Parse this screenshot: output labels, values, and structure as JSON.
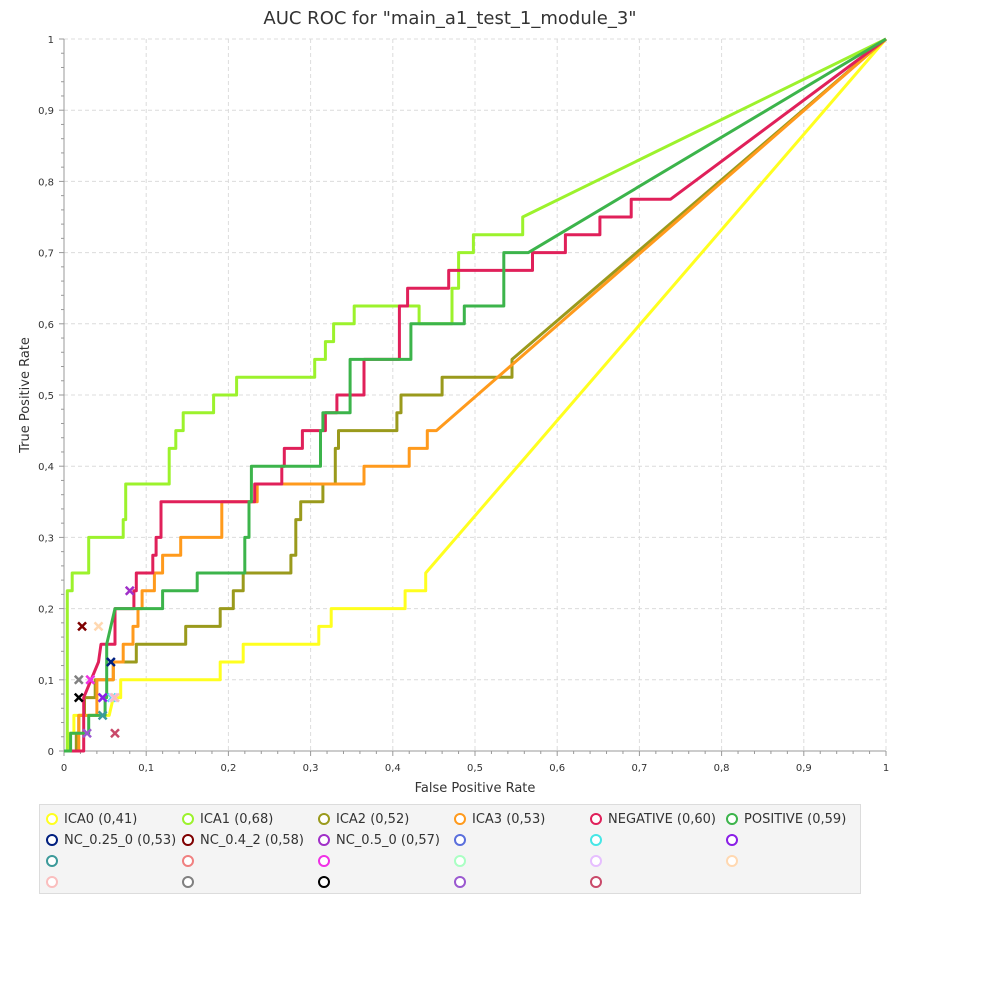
{
  "chart_data": {
    "type": "line",
    "title": "AUC ROC for \"main_a1_test_1_module_3\"",
    "xlabel": "False Positive Rate",
    "ylabel": "True Positive Rate",
    "xlim": [
      0,
      1
    ],
    "ylim": [
      0,
      1
    ],
    "grid": true,
    "x_ticks": [
      "0",
      "0,1",
      "0,2",
      "0,3",
      "0,4",
      "0,5",
      "0,6",
      "0,7",
      "0,8",
      "0,9",
      "1"
    ],
    "y_ticks": [
      "0",
      "0,1",
      "0,2",
      "0,3",
      "0,4",
      "0,5",
      "0,6",
      "0,7",
      "0,8",
      "0,9",
      "1"
    ],
    "series": [
      {
        "name": "ICA0 (0,41)",
        "color": "#ffff1f",
        "points": [
          [
            0,
            0
          ],
          [
            0.006,
            0
          ],
          [
            0.006,
            0.025
          ],
          [
            0.012,
            0.025
          ],
          [
            0.012,
            0.05
          ],
          [
            0.055,
            0.05
          ],
          [
            0.06,
            0.075
          ],
          [
            0.069,
            0.075
          ],
          [
            0.069,
            0.1
          ],
          [
            0.19,
            0.1
          ],
          [
            0.19,
            0.125
          ],
          [
            0.218,
            0.125
          ],
          [
            0.218,
            0.15
          ],
          [
            0.31,
            0.15
          ],
          [
            0.31,
            0.175
          ],
          [
            0.325,
            0.175
          ],
          [
            0.325,
            0.2
          ],
          [
            0.415,
            0.2
          ],
          [
            0.415,
            0.225
          ],
          [
            0.44,
            0.225
          ],
          [
            0.44,
            0.25
          ],
          [
            1,
            1
          ]
        ]
      },
      {
        "name": "ICA1 (0,68)",
        "color": "#9cf22c",
        "points": [
          [
            0,
            0
          ],
          [
            0.004,
            0
          ],
          [
            0.004,
            0.1
          ],
          [
            0.004,
            0.225
          ],
          [
            0.01,
            0.225
          ],
          [
            0.01,
            0.25
          ],
          [
            0.03,
            0.25
          ],
          [
            0.03,
            0.3
          ],
          [
            0.072,
            0.3
          ],
          [
            0.072,
            0.325
          ],
          [
            0.075,
            0.325
          ],
          [
            0.075,
            0.375
          ],
          [
            0.128,
            0.375
          ],
          [
            0.128,
            0.425
          ],
          [
            0.136,
            0.425
          ],
          [
            0.136,
            0.45
          ],
          [
            0.145,
            0.45
          ],
          [
            0.145,
            0.475
          ],
          [
            0.182,
            0.475
          ],
          [
            0.182,
            0.5
          ],
          [
            0.21,
            0.5
          ],
          [
            0.21,
            0.525
          ],
          [
            0.305,
            0.525
          ],
          [
            0.305,
            0.55
          ],
          [
            0.318,
            0.55
          ],
          [
            0.318,
            0.575
          ],
          [
            0.328,
            0.575
          ],
          [
            0.328,
            0.6
          ],
          [
            0.353,
            0.6
          ],
          [
            0.353,
            0.625
          ],
          [
            0.432,
            0.625
          ],
          [
            0.432,
            0.6
          ],
          [
            0.472,
            0.6
          ],
          [
            0.472,
            0.65
          ],
          [
            0.48,
            0.65
          ],
          [
            0.48,
            0.7
          ],
          [
            0.498,
            0.7
          ],
          [
            0.498,
            0.725
          ],
          [
            0.558,
            0.725
          ],
          [
            0.558,
            0.75
          ],
          [
            1,
            1
          ]
        ]
      },
      {
        "name": "ICA2 (0,52)",
        "color": "#9a9a1c",
        "points": [
          [
            0,
            0
          ],
          [
            0.015,
            0
          ],
          [
            0.015,
            0.025
          ],
          [
            0.018,
            0.025
          ],
          [
            0.018,
            0.05
          ],
          [
            0.025,
            0.05
          ],
          [
            0.025,
            0.075
          ],
          [
            0.038,
            0.075
          ],
          [
            0.038,
            0.1
          ],
          [
            0.06,
            0.1
          ],
          [
            0.06,
            0.125
          ],
          [
            0.088,
            0.125
          ],
          [
            0.088,
            0.15
          ],
          [
            0.148,
            0.15
          ],
          [
            0.148,
            0.175
          ],
          [
            0.19,
            0.175
          ],
          [
            0.19,
            0.2
          ],
          [
            0.206,
            0.2
          ],
          [
            0.206,
            0.225
          ],
          [
            0.218,
            0.225
          ],
          [
            0.218,
            0.25
          ],
          [
            0.276,
            0.25
          ],
          [
            0.276,
            0.275
          ],
          [
            0.282,
            0.275
          ],
          [
            0.282,
            0.325
          ],
          [
            0.288,
            0.325
          ],
          [
            0.288,
            0.35
          ],
          [
            0.315,
            0.35
          ],
          [
            0.315,
            0.375
          ],
          [
            0.33,
            0.375
          ],
          [
            0.33,
            0.425
          ],
          [
            0.334,
            0.425
          ],
          [
            0.334,
            0.45
          ],
          [
            0.405,
            0.45
          ],
          [
            0.405,
            0.475
          ],
          [
            0.41,
            0.475
          ],
          [
            0.41,
            0.5
          ],
          [
            0.46,
            0.5
          ],
          [
            0.46,
            0.525
          ],
          [
            0.545,
            0.525
          ],
          [
            0.545,
            0.55
          ],
          [
            1,
            1
          ]
        ]
      },
      {
        "name": "ICA3 (0,53)",
        "color": "#ff9a1c",
        "points": [
          [
            0,
            0
          ],
          [
            0.018,
            0
          ],
          [
            0.018,
            0.05
          ],
          [
            0.04,
            0.05
          ],
          [
            0.04,
            0.1
          ],
          [
            0.06,
            0.1
          ],
          [
            0.06,
            0.125
          ],
          [
            0.072,
            0.125
          ],
          [
            0.072,
            0.15
          ],
          [
            0.084,
            0.15
          ],
          [
            0.084,
            0.175
          ],
          [
            0.09,
            0.175
          ],
          [
            0.09,
            0.2
          ],
          [
            0.095,
            0.2
          ],
          [
            0.095,
            0.225
          ],
          [
            0.11,
            0.225
          ],
          [
            0.11,
            0.25
          ],
          [
            0.12,
            0.25
          ],
          [
            0.12,
            0.275
          ],
          [
            0.142,
            0.275
          ],
          [
            0.142,
            0.3
          ],
          [
            0.192,
            0.3
          ],
          [
            0.192,
            0.35
          ],
          [
            0.235,
            0.35
          ],
          [
            0.235,
            0.375
          ],
          [
            0.365,
            0.375
          ],
          [
            0.365,
            0.4
          ],
          [
            0.42,
            0.4
          ],
          [
            0.42,
            0.425
          ],
          [
            0.442,
            0.425
          ],
          [
            0.442,
            0.45
          ],
          [
            0.453,
            0.45
          ],
          [
            1,
            1
          ]
        ]
      },
      {
        "name": "NEGATIVE (0,60)",
        "color": "#e0205a",
        "points": [
          [
            0,
            0
          ],
          [
            0.024,
            0
          ],
          [
            0.024,
            0.075
          ],
          [
            0.042,
            0.125
          ],
          [
            0.045,
            0.15
          ],
          [
            0.062,
            0.15
          ],
          [
            0.062,
            0.2
          ],
          [
            0.085,
            0.2
          ],
          [
            0.085,
            0.225
          ],
          [
            0.088,
            0.225
          ],
          [
            0.088,
            0.25
          ],
          [
            0.108,
            0.25
          ],
          [
            0.108,
            0.275
          ],
          [
            0.112,
            0.275
          ],
          [
            0.112,
            0.3
          ],
          [
            0.118,
            0.3
          ],
          [
            0.118,
            0.35
          ],
          [
            0.232,
            0.35
          ],
          [
            0.232,
            0.375
          ],
          [
            0.265,
            0.375
          ],
          [
            0.265,
            0.4
          ],
          [
            0.268,
            0.4
          ],
          [
            0.268,
            0.425
          ],
          [
            0.29,
            0.425
          ],
          [
            0.29,
            0.45
          ],
          [
            0.318,
            0.45
          ],
          [
            0.318,
            0.475
          ],
          [
            0.332,
            0.475
          ],
          [
            0.332,
            0.5
          ],
          [
            0.365,
            0.5
          ],
          [
            0.365,
            0.55
          ],
          [
            0.408,
            0.55
          ],
          [
            0.408,
            0.625
          ],
          [
            0.418,
            0.625
          ],
          [
            0.418,
            0.65
          ],
          [
            0.468,
            0.65
          ],
          [
            0.468,
            0.675
          ],
          [
            0.57,
            0.675
          ],
          [
            0.57,
            0.7
          ],
          [
            0.61,
            0.7
          ],
          [
            0.61,
            0.725
          ],
          [
            0.652,
            0.725
          ],
          [
            0.652,
            0.75
          ],
          [
            0.69,
            0.75
          ],
          [
            0.69,
            0.775
          ],
          [
            0.738,
            0.775
          ],
          [
            1,
            1
          ]
        ]
      },
      {
        "name": "POSITIVE (0,59)",
        "color": "#3cb44b",
        "points": [
          [
            0,
            0
          ],
          [
            0.008,
            0
          ],
          [
            0.008,
            0.025
          ],
          [
            0.03,
            0.025
          ],
          [
            0.03,
            0.05
          ],
          [
            0.05,
            0.05
          ],
          [
            0.05,
            0.075
          ],
          [
            0.052,
            0.075
          ],
          [
            0.052,
            0.15
          ],
          [
            0.062,
            0.2
          ],
          [
            0.12,
            0.2
          ],
          [
            0.12,
            0.225
          ],
          [
            0.162,
            0.225
          ],
          [
            0.162,
            0.25
          ],
          [
            0.22,
            0.25
          ],
          [
            0.22,
            0.3
          ],
          [
            0.225,
            0.3
          ],
          [
            0.225,
            0.35
          ],
          [
            0.228,
            0.35
          ],
          [
            0.228,
            0.4
          ],
          [
            0.312,
            0.4
          ],
          [
            0.312,
            0.45
          ],
          [
            0.315,
            0.45
          ],
          [
            0.315,
            0.475
          ],
          [
            0.348,
            0.475
          ],
          [
            0.348,
            0.55
          ],
          [
            0.422,
            0.55
          ],
          [
            0.422,
            0.6
          ],
          [
            0.487,
            0.6
          ],
          [
            0.487,
            0.625
          ],
          [
            0.535,
            0.625
          ],
          [
            0.535,
            0.7
          ],
          [
            0.565,
            0.7
          ],
          [
            1,
            1
          ]
        ]
      }
    ],
    "markers": [
      {
        "name": "NC_0.25_0 (0,53)",
        "color": "#001f7f",
        "x": 0.057,
        "y": 0.125
      },
      {
        "name": "NC_0.4_2 (0,58)",
        "color": "#7f0000",
        "x": 0.022,
        "y": 0.175
      },
      {
        "name": "NC_0.5_0 (0,57)",
        "color": "#a030c8",
        "x": 0.08,
        "y": 0.225
      },
      {
        "name": "",
        "color": "#5a6fdc",
        "x": 0.047,
        "y": 0.075
      },
      {
        "name": "",
        "color": "#46e6e6",
        "x": 0.058,
        "y": 0.075
      },
      {
        "name": "",
        "color": "#8a1fe6",
        "x": 0.047,
        "y": 0.075
      },
      {
        "name": "",
        "color": "#3c9a9a",
        "x": 0.047,
        "y": 0.05
      },
      {
        "name": "",
        "color": "#f08080",
        "x": 0.032,
        "y": 0.1
      },
      {
        "name": "",
        "color": "#f030e6",
        "x": 0.032,
        "y": 0.1
      },
      {
        "name": "",
        "color": "#aaffc3",
        "x": 0.062,
        "y": 0.075
      },
      {
        "name": "",
        "color": "#e6beff",
        "x": 0.06,
        "y": 0.075
      },
      {
        "name": "",
        "color": "#ffd8b1",
        "x": 0.042,
        "y": 0.175
      },
      {
        "name": "",
        "color": "#fabebe",
        "x": 0.062,
        "y": 0.075
      },
      {
        "name": "",
        "color": "#808080",
        "x": 0.018,
        "y": 0.1
      },
      {
        "name": "",
        "color": "#000000",
        "x": 0.018,
        "y": 0.075
      },
      {
        "name": "",
        "color": "#9b59d0",
        "x": 0.028,
        "y": 0.025
      },
      {
        "name": "",
        "color": "#c94a6a",
        "x": 0.062,
        "y": 0.025
      }
    ],
    "legend": {
      "placement": "bottom",
      "entries": [
        {
          "label": "ICA0 (0,41)",
          "color": "#ffff1f"
        },
        {
          "label": "ICA1 (0,68)",
          "color": "#9cf22c"
        },
        {
          "label": "ICA2 (0,52)",
          "color": "#9a9a1c"
        },
        {
          "label": "ICA3 (0,53)",
          "color": "#ff9a1c"
        },
        {
          "label": "NEGATIVE (0,60)",
          "color": "#e0205a"
        },
        {
          "label": "POSITIVE (0,59)",
          "color": "#3cb44b"
        },
        {
          "label": "NC_0.25_0 (0,53)",
          "color": "#001f7f"
        },
        {
          "label": "NC_0.4_2 (0,58)",
          "color": "#7f0000"
        },
        {
          "label": "NC_0.5_0 (0,57)",
          "color": "#a030c8"
        },
        {
          "label": "",
          "color": "#5a6fdc"
        },
        {
          "label": "",
          "color": "#46e6e6"
        },
        {
          "label": "",
          "color": "#8a1fe6"
        },
        {
          "label": "",
          "color": "#3c9a9a"
        },
        {
          "label": "",
          "color": "#f08080"
        },
        {
          "label": "",
          "color": "#f030e6"
        },
        {
          "label": "",
          "color": "#aaffc3"
        },
        {
          "label": "",
          "color": "#e6beff"
        },
        {
          "label": "",
          "color": "#ffd8b1"
        },
        {
          "label": "",
          "color": "#fabebe"
        },
        {
          "label": "",
          "color": "#808080"
        },
        {
          "label": "",
          "color": "#000000"
        },
        {
          "label": "",
          "color": "#9b59d0"
        },
        {
          "label": "",
          "color": "#c94a6a"
        }
      ]
    }
  }
}
